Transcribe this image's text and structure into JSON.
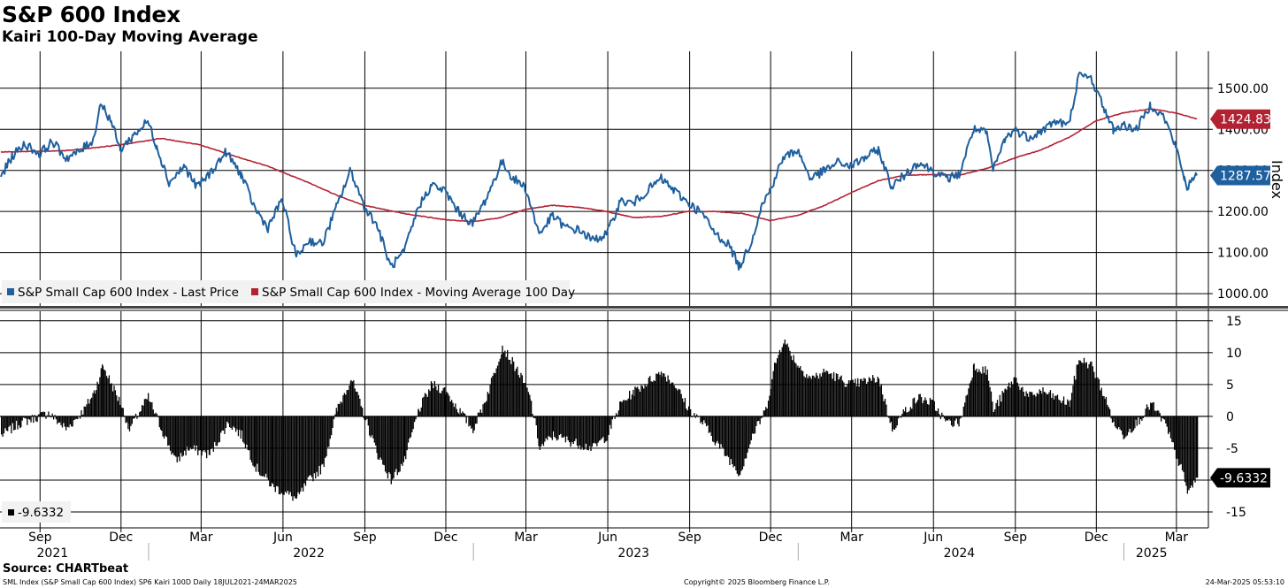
{
  "header": {
    "title": "S&P 600 Index",
    "subtitle": "Kairi 100-Day Moving Average"
  },
  "footer": {
    "source": "Source: CHARTbeat",
    "description": "SML Index (S&P Small Cap 600 Index) SP6 Kairi 100D  Daily 18JUL2021-24MAR2025",
    "copyright": "Copyright© 2025 Bloomberg Finance L.P.",
    "timestamp": "24-Mar-2025 05:53:10"
  },
  "colors": {
    "price": "#1f5f9e",
    "moving_average": "#b22232",
    "kairi": "#000000",
    "grid": "#000000"
  },
  "chart_data": [
    {
      "type": "line",
      "ylabel": "Index",
      "ylim": [
        970,
        1590
      ],
      "y_ticks": [
        "1000.00",
        "1100.00",
        "1200.00",
        "1300.00",
        "1400.00",
        "1500.00"
      ],
      "legend_placement": "bottom-left",
      "series": [
        {
          "name": "S&P Small Cap 600 Index - Last Price",
          "last_label": "1287.57",
          "points": [
            [
              "2021-07-19",
              1285
            ],
            [
              "2021-08-01",
              1335
            ],
            [
              "2021-08-15",
              1365
            ],
            [
              "2021-08-31",
              1340
            ],
            [
              "2021-09-15",
              1370
            ],
            [
              "2021-09-30",
              1330
            ],
            [
              "2021-10-15",
              1345
            ],
            [
              "2021-10-31",
              1375
            ],
            [
              "2021-11-08",
              1465
            ],
            [
              "2021-11-20",
              1420
            ],
            [
              "2021-11-30",
              1350
            ],
            [
              "2021-12-15",
              1385
            ],
            [
              "2021-12-31",
              1420
            ],
            [
              "2022-01-10",
              1360
            ],
            [
              "2022-01-24",
              1270
            ],
            [
              "2022-02-10",
              1310
            ],
            [
              "2022-02-24",
              1260
            ],
            [
              "2022-03-10",
              1290
            ],
            [
              "2022-03-29",
              1345
            ],
            [
              "2022-04-15",
              1290
            ],
            [
              "2022-04-30",
              1210
            ],
            [
              "2022-05-15",
              1160
            ],
            [
              "2022-05-31",
              1230
            ],
            [
              "2022-06-16",
              1090
            ],
            [
              "2022-06-30",
              1130
            ],
            [
              "2022-07-15",
              1120
            ],
            [
              "2022-07-31",
              1210
            ],
            [
              "2022-08-16",
              1300
            ],
            [
              "2022-08-31",
              1215
            ],
            [
              "2022-09-15",
              1165
            ],
            [
              "2022-09-30",
              1065
            ],
            [
              "2022-10-15",
              1100
            ],
            [
              "2022-10-31",
              1210
            ],
            [
              "2022-11-15",
              1265
            ],
            [
              "2022-11-30",
              1250
            ],
            [
              "2022-12-15",
              1200
            ],
            [
              "2022-12-31",
              1170
            ],
            [
              "2023-01-15",
              1230
            ],
            [
              "2023-02-02",
              1320
            ],
            [
              "2023-02-15",
              1280
            ],
            [
              "2023-02-28",
              1260
            ],
            [
              "2023-03-16",
              1145
            ],
            [
              "2023-03-31",
              1190
            ],
            [
              "2023-04-15",
              1160
            ],
            [
              "2023-04-30",
              1155
            ],
            [
              "2023-05-15",
              1130
            ],
            [
              "2023-05-31",
              1145
            ],
            [
              "2023-06-15",
              1225
            ],
            [
              "2023-06-30",
              1220
            ],
            [
              "2023-07-15",
              1250
            ],
            [
              "2023-07-31",
              1280
            ],
            [
              "2023-08-15",
              1250
            ],
            [
              "2023-08-31",
              1220
            ],
            [
              "2023-09-15",
              1195
            ],
            [
              "2023-09-30",
              1145
            ],
            [
              "2023-10-15",
              1120
            ],
            [
              "2023-10-27",
              1065
            ],
            [
              "2023-11-10",
              1130
            ],
            [
              "2023-11-20",
              1210
            ],
            [
              "2023-11-30",
              1250
            ],
            [
              "2023-12-15",
              1330
            ],
            [
              "2023-12-31",
              1350
            ],
            [
              "2024-01-15",
              1280
            ],
            [
              "2024-01-31",
              1300
            ],
            [
              "2024-02-15",
              1320
            ],
            [
              "2024-02-29",
              1310
            ],
            [
              "2024-03-15",
              1330
            ],
            [
              "2024-03-31",
              1350
            ],
            [
              "2024-04-15",
              1260
            ],
            [
              "2024-04-30",
              1290
            ],
            [
              "2024-05-15",
              1320
            ],
            [
              "2024-05-31",
              1300
            ],
            [
              "2024-06-15",
              1280
            ],
            [
              "2024-06-30",
              1290
            ],
            [
              "2024-07-16",
              1400
            ],
            [
              "2024-07-31",
              1390
            ],
            [
              "2024-08-07",
              1300
            ],
            [
              "2024-08-20",
              1375
            ],
            [
              "2024-08-31",
              1400
            ],
            [
              "2024-09-15",
              1380
            ],
            [
              "2024-09-30",
              1395
            ],
            [
              "2024-10-15",
              1420
            ],
            [
              "2024-10-31",
              1410
            ],
            [
              "2024-11-11",
              1530
            ],
            [
              "2024-11-25",
              1525
            ],
            [
              "2024-12-10",
              1450
            ],
            [
              "2024-12-20",
              1400
            ],
            [
              "2024-12-31",
              1410
            ],
            [
              "2025-01-15",
              1400
            ],
            [
              "2025-01-31",
              1460
            ],
            [
              "2025-02-15",
              1430
            ],
            [
              "2025-02-28",
              1360
            ],
            [
              "2025-03-10",
              1280
            ],
            [
              "2025-03-13",
              1260
            ],
            [
              "2025-03-24",
              1287.57
            ]
          ]
        },
        {
          "name": "S&P Small Cap 600 Index - Moving Average 100 Day",
          "last_label": "1424.83",
          "points": [
            [
              "2021-07-19",
              1345
            ],
            [
              "2021-09-30",
              1348
            ],
            [
              "2021-11-30",
              1362
            ],
            [
              "2022-01-15",
              1378
            ],
            [
              "2022-02-28",
              1362
            ],
            [
              "2022-03-31",
              1340
            ],
            [
              "2022-05-15",
              1310
            ],
            [
              "2022-06-30",
              1270
            ],
            [
              "2022-07-31",
              1240
            ],
            [
              "2022-08-31",
              1215
            ],
            [
              "2022-10-15",
              1195
            ],
            [
              "2022-11-30",
              1180
            ],
            [
              "2022-12-31",
              1175
            ],
            [
              "2023-01-31",
              1185
            ],
            [
              "2023-02-28",
              1205
            ],
            [
              "2023-03-31",
              1215
            ],
            [
              "2023-04-30",
              1210
            ],
            [
              "2023-05-31",
              1200
            ],
            [
              "2023-06-30",
              1185
            ],
            [
              "2023-07-31",
              1188
            ],
            [
              "2023-08-31",
              1200
            ],
            [
              "2023-09-30",
              1200
            ],
            [
              "2023-10-31",
              1195
            ],
            [
              "2023-11-30",
              1178
            ],
            [
              "2023-12-31",
              1190
            ],
            [
              "2024-01-31",
              1215
            ],
            [
              "2024-02-29",
              1245
            ],
            [
              "2024-03-31",
              1275
            ],
            [
              "2024-04-30",
              1288
            ],
            [
              "2024-05-31",
              1290
            ],
            [
              "2024-06-30",
              1288
            ],
            [
              "2024-07-31",
              1305
            ],
            [
              "2024-08-31",
              1330
            ],
            [
              "2024-09-30",
              1350
            ],
            [
              "2024-10-31",
              1380
            ],
            [
              "2024-11-30",
              1420
            ],
            [
              "2024-12-31",
              1440
            ],
            [
              "2025-01-31",
              1450
            ],
            [
              "2025-02-28",
              1440
            ],
            [
              "2025-03-24",
              1424.83
            ]
          ]
        }
      ]
    },
    {
      "type": "bar",
      "ylim": [
        -17.5,
        16.5
      ],
      "y_ticks": [
        "15",
        "10",
        "5",
        "0",
        "-5",
        "-10",
        "-15"
      ],
      "legend_placement": "bottom-left",
      "series": [
        {
          "name": "-9.6332",
          "last_label": "-9.6332",
          "points": [
            [
              "2021-07-19",
              -3
            ],
            [
              "2021-08-10",
              -1
            ],
            [
              "2021-09-10",
              0.5
            ],
            [
              "2021-09-30",
              -2
            ],
            [
              "2021-10-20",
              1
            ],
            [
              "2021-11-01",
              4
            ],
            [
              "2021-11-10",
              8
            ],
            [
              "2021-11-30",
              2
            ],
            [
              "2021-12-10",
              -2
            ],
            [
              "2021-12-31",
              3
            ],
            [
              "2022-01-15",
              -2
            ],
            [
              "2022-01-31",
              -7
            ],
            [
              "2022-02-15",
              -5
            ],
            [
              "2022-03-10",
              -6
            ],
            [
              "2022-03-31",
              -1
            ],
            [
              "2022-04-15",
              -3
            ],
            [
              "2022-05-01",
              -8
            ],
            [
              "2022-05-20",
              -11
            ],
            [
              "2022-06-16",
              -13
            ],
            [
              "2022-06-30",
              -10
            ],
            [
              "2022-07-15",
              -8
            ],
            [
              "2022-07-31",
              1
            ],
            [
              "2022-08-16",
              6
            ],
            [
              "2022-08-31",
              0
            ],
            [
              "2022-09-15",
              -6
            ],
            [
              "2022-09-30",
              -10
            ],
            [
              "2022-10-15",
              -7
            ],
            [
              "2022-10-31",
              1
            ],
            [
              "2022-11-15",
              5
            ],
            [
              "2022-11-30",
              4
            ],
            [
              "2022-12-15",
              1
            ],
            [
              "2022-12-31",
              -2
            ],
            [
              "2023-01-15",
              3
            ],
            [
              "2023-02-02",
              11
            ],
            [
              "2023-02-20",
              7
            ],
            [
              "2023-03-05",
              3
            ],
            [
              "2023-03-16",
              -5
            ],
            [
              "2023-03-31",
              -3
            ],
            [
              "2023-04-20",
              -4
            ],
            [
              "2023-05-15",
              -5
            ],
            [
              "2023-05-31",
              -3
            ],
            [
              "2023-06-15",
              2
            ],
            [
              "2023-07-01",
              4
            ],
            [
              "2023-07-31",
              7
            ],
            [
              "2023-08-15",
              5
            ],
            [
              "2023-08-31",
              1
            ],
            [
              "2023-09-15",
              -1
            ],
            [
              "2023-09-30",
              -4
            ],
            [
              "2023-10-27",
              -9
            ],
            [
              "2023-11-10",
              -3
            ],
            [
              "2023-11-25",
              1
            ],
            [
              "2023-12-05",
              8
            ],
            [
              "2023-12-15",
              12
            ],
            [
              "2023-12-31",
              8
            ],
            [
              "2024-01-15",
              6
            ],
            [
              "2024-02-01",
              7
            ],
            [
              "2024-02-28",
              5
            ],
            [
              "2024-03-31",
              6
            ],
            [
              "2024-04-15",
              -2
            ],
            [
              "2024-04-30",
              1
            ],
            [
              "2024-05-15",
              3
            ],
            [
              "2024-05-31",
              2
            ],
            [
              "2024-06-15",
              -1
            ],
            [
              "2024-06-30",
              -1
            ],
            [
              "2024-07-16",
              8
            ],
            [
              "2024-07-31",
              7
            ],
            [
              "2024-08-07",
              1
            ],
            [
              "2024-08-20",
              4
            ],
            [
              "2024-08-31",
              6
            ],
            [
              "2024-09-15",
              3
            ],
            [
              "2024-09-30",
              4
            ],
            [
              "2024-10-15",
              3
            ],
            [
              "2024-10-31",
              2
            ],
            [
              "2024-11-11",
              9
            ],
            [
              "2024-11-25",
              8
            ],
            [
              "2024-12-10",
              3
            ],
            [
              "2024-12-20",
              -1
            ],
            [
              "2024-12-31",
              -3
            ],
            [
              "2025-01-15",
              -1
            ],
            [
              "2025-01-31",
              2
            ],
            [
              "2025-02-15",
              -1
            ],
            [
              "2025-02-28",
              -6
            ],
            [
              "2025-03-10",
              -10
            ],
            [
              "2025-03-13",
              -12
            ],
            [
              "2025-03-24",
              -9.6332
            ]
          ]
        }
      ]
    }
  ],
  "x_axis": {
    "months": [
      [
        "2021-09-01",
        "Sep"
      ],
      [
        "2021-12-01",
        "Dec"
      ],
      [
        "2022-03-01",
        "Mar"
      ],
      [
        "2022-06-01",
        "Jun"
      ],
      [
        "2022-09-01",
        "Sep"
      ],
      [
        "2022-12-01",
        "Dec"
      ],
      [
        "2023-03-01",
        "Mar"
      ],
      [
        "2023-06-01",
        "Jun"
      ],
      [
        "2023-09-01",
        "Sep"
      ],
      [
        "2023-12-01",
        "Dec"
      ],
      [
        "2024-03-01",
        "Mar"
      ],
      [
        "2024-06-01",
        "Jun"
      ],
      [
        "2024-09-01",
        "Sep"
      ],
      [
        "2024-12-01",
        "Dec"
      ],
      [
        "2025-03-01",
        "Mar"
      ]
    ],
    "years": [
      [
        "2021-09-15",
        "2021"
      ],
      [
        "2022-06-30",
        "2022"
      ],
      [
        "2023-06-30",
        "2023"
      ],
      [
        "2024-06-30",
        "2024"
      ],
      [
        "2025-02-01",
        "2025"
      ]
    ],
    "year_boundaries": [
      "2022-01-01",
      "2023-01-01",
      "2024-01-01",
      "2025-01-01"
    ],
    "start": "2021-07-18",
    "end": "2025-03-24"
  }
}
